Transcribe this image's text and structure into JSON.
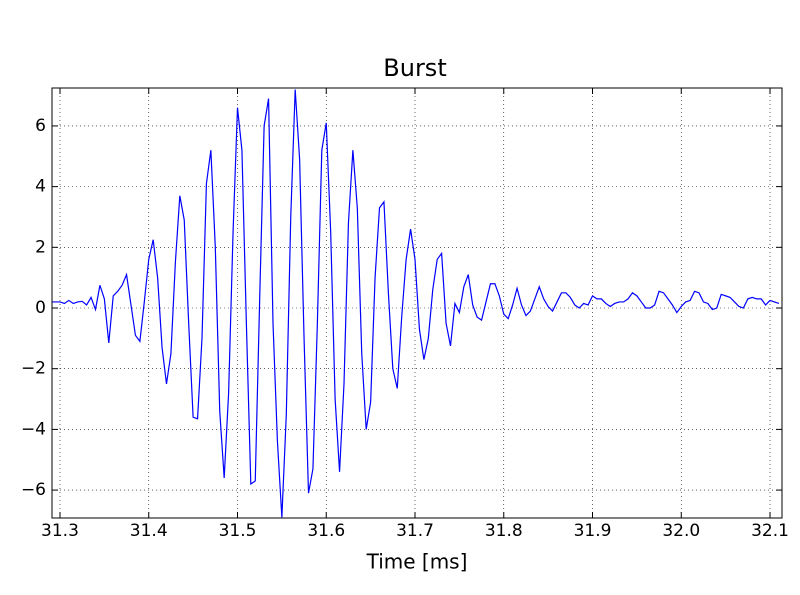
{
  "chart_data": {
    "type": "line",
    "title": "Burst",
    "x_label": "Time [ms]",
    "color": "#0000ff",
    "grid": true,
    "xlim": [
      31.291,
      32.1135
    ],
    "ylim": [
      -6.92,
      7.25
    ],
    "xticks": [
      31.3,
      31.4,
      31.5,
      31.6,
      31.7,
      31.8,
      31.9,
      {
        "value": 32,
        "label": "32.0"
      },
      32.1
    ],
    "yticks": [
      {
        "value": -6,
        "label": "−6"
      },
      {
        "value": -4,
        "label": "−4"
      },
      {
        "value": -2,
        "label": "−2"
      },
      0,
      2,
      4,
      6
    ],
    "x": [
      31.29,
      31.295,
      31.3,
      31.305,
      31.31,
      31.315,
      31.32,
      31.325,
      31.33,
      31.335,
      31.34,
      31.345,
      31.35,
      31.355,
      31.36,
      31.365,
      31.37,
      31.375,
      31.38,
      31.385,
      31.39,
      31.395,
      31.4,
      31.405,
      31.41,
      31.415,
      31.42,
      31.425,
      31.43,
      31.435,
      31.44,
      31.445,
      31.45,
      31.455,
      31.46,
      31.465,
      31.47,
      31.475,
      31.48,
      31.485,
      31.49,
      31.495,
      31.5,
      31.505,
      31.51,
      31.515,
      31.52,
      31.525,
      31.53,
      31.535,
      31.54,
      31.545,
      31.55,
      31.555,
      31.56,
      31.565,
      31.57,
      31.575,
      31.58,
      31.585,
      31.59,
      31.595,
      31.6,
      31.605,
      31.61,
      31.615,
      31.62,
      31.625,
      31.63,
      31.635,
      31.64,
      31.645,
      31.65,
      31.655,
      31.66,
      31.665,
      31.67,
      31.675,
      31.68,
      31.685,
      31.69,
      31.695,
      31.7,
      31.705,
      31.71,
      31.715,
      31.72,
      31.725,
      31.73,
      31.735,
      31.74,
      31.745,
      31.75,
      31.755,
      31.76,
      31.765,
      31.77,
      31.775,
      31.78,
      31.785,
      31.79,
      31.795,
      31.8,
      31.805,
      31.81,
      31.815,
      31.82,
      31.825,
      31.83,
      31.835,
      31.84,
      31.845,
      31.85,
      31.855,
      31.86,
      31.865,
      31.87,
      31.875,
      31.88,
      31.885,
      31.89,
      31.895,
      31.9,
      31.905,
      31.91,
      31.915,
      31.92,
      31.925,
      31.93,
      31.935,
      31.94,
      31.945,
      31.95,
      31.955,
      31.96,
      31.965,
      31.97,
      31.975,
      31.98,
      31.985,
      31.99,
      31.995,
      32.0,
      32.005,
      32.01,
      32.015,
      32.02,
      32.025,
      32.03,
      32.035,
      32.04,
      32.045,
      32.05,
      32.055,
      32.06,
      32.065,
      32.07,
      32.075,
      32.08,
      32.085,
      32.09,
      32.095,
      32.1,
      32.105,
      32.11
    ],
    "values": [
      0.2,
      0.2,
      0.2,
      0.15,
      0.25,
      0.15,
      0.2,
      0.22,
      0.1,
      0.35,
      -0.05,
      0.75,
      0.3,
      -1.15,
      0.4,
      0.55,
      0.75,
      1.1,
      0.1,
      -0.9,
      -1.1,
      0.2,
      1.6,
      2.25,
      1.0,
      -1.3,
      -2.5,
      -1.5,
      1.5,
      3.7,
      2.9,
      -0.5,
      -3.6,
      -3.65,
      -1.0,
      4.1,
      5.2,
      2.0,
      -3.4,
      -5.6,
      -2.8,
      2.5,
      6.6,
      5.2,
      -0.5,
      -5.8,
      -5.7,
      0.3,
      6.0,
      6.9,
      -0.5,
      -4.4,
      -6.9,
      -3.5,
      3.0,
      7.2,
      4.9,
      -1.0,
      -6.1,
      -5.3,
      -0.5,
      5.2,
      6.1,
      2.5,
      -3.0,
      -5.4,
      -2.5,
      2.8,
      5.2,
      3.3,
      -1.5,
      -4.0,
      -3.1,
      1.0,
      3.3,
      3.5,
      0.5,
      -2.0,
      -2.65,
      -0.3,
      1.6,
      2.6,
      1.6,
      -0.7,
      -1.7,
      -1.0,
      0.6,
      1.6,
      1.8,
      -0.5,
      -1.25,
      0.15,
      -0.15,
      0.7,
      1.1,
      0.1,
      -0.3,
      -0.4,
      0.2,
      0.8,
      0.8,
      0.4,
      -0.2,
      -0.35,
      0.1,
      0.65,
      0.1,
      -0.25,
      -0.1,
      0.3,
      0.7,
      0.3,
      0.05,
      -0.1,
      0.2,
      0.5,
      0.5,
      0.35,
      0.1,
      0.0,
      0.15,
      0.1,
      0.4,
      0.3,
      0.3,
      0.15,
      0.05,
      0.15,
      0.2,
      0.2,
      0.3,
      0.5,
      0.4,
      0.2,
      0.0,
      0.0,
      0.1,
      0.55,
      0.5,
      0.3,
      0.1,
      -0.15,
      0.05,
      0.2,
      0.25,
      0.55,
      0.5,
      0.2,
      0.15,
      -0.05,
      0.0,
      0.45,
      0.4,
      0.35,
      0.2,
      0.05,
      0.0,
      0.3,
      0.35,
      0.3,
      0.3,
      0.1,
      0.25,
      0.2,
      0.15
    ]
  }
}
